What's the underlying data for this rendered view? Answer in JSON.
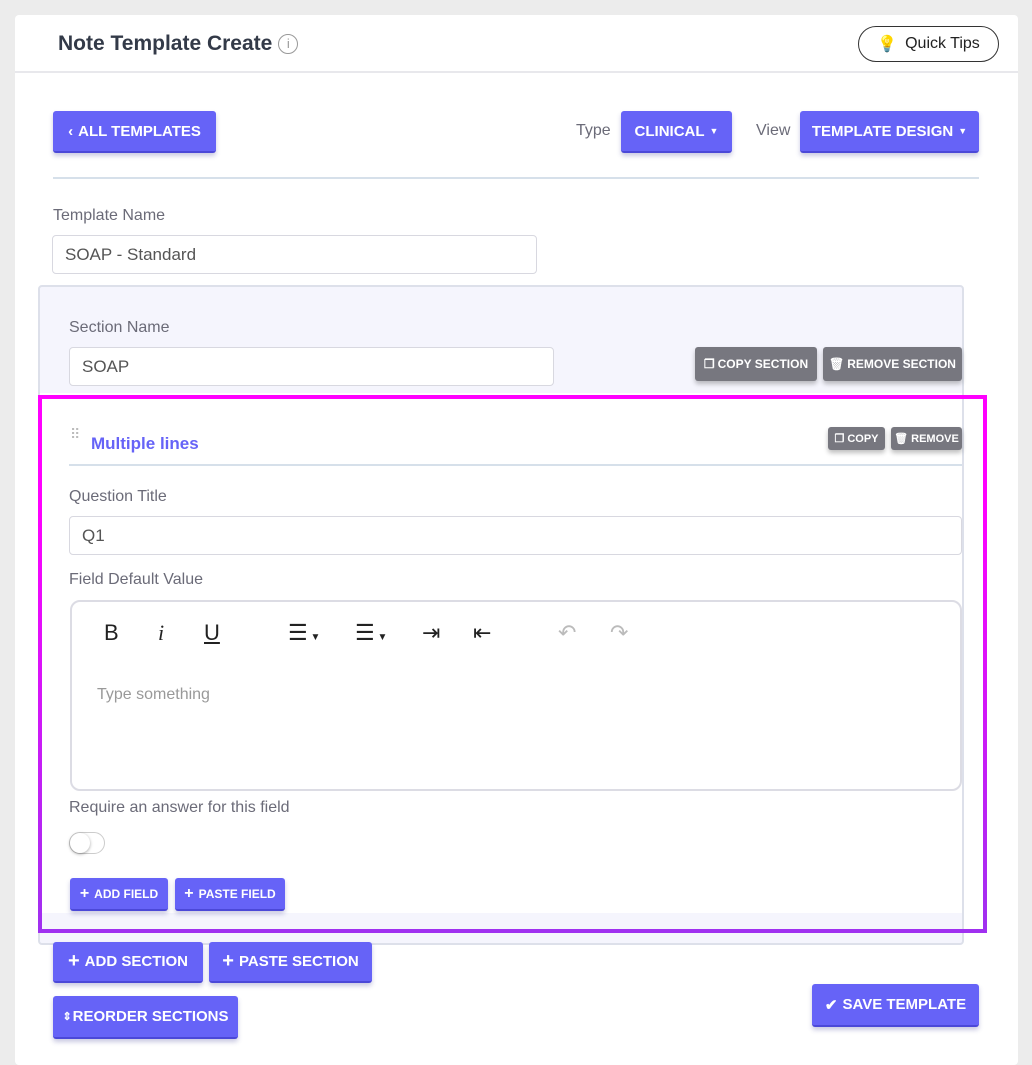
{
  "header": {
    "title": "Note Template Create",
    "quick_tips": "Quick Tips"
  },
  "toolbar": {
    "all_templates": "ALL TEMPLATES",
    "type_label": "Type",
    "type_value": "CLINICAL",
    "view_label": "View",
    "view_value": "TEMPLATE DESIGN"
  },
  "template": {
    "name_label": "Template Name",
    "name_value": "SOAP - Standard"
  },
  "section": {
    "name_label": "Section Name",
    "name_value": "SOAP",
    "copy": "COPY SECTION",
    "remove": "REMOVE SECTION"
  },
  "field": {
    "type_title": "Multiple lines",
    "copy": "COPY",
    "remove": "REMOVE",
    "question_label": "Question Title",
    "question_value": "Q1",
    "default_label": "Field Default Value",
    "placeholder": "Type something",
    "require_label": "Require an answer for this field",
    "require_on": false,
    "add_field": "ADD FIELD",
    "paste_field": "PASTE FIELD"
  },
  "footer": {
    "add_section": "ADD SECTION",
    "paste_section": "PASTE SECTION",
    "reorder": "REORDER SECTIONS",
    "save": "SAVE TEMPLATE"
  },
  "colors": {
    "accent": "#6663f7",
    "secondary": "#77777f",
    "highlight": "#ff00ff"
  }
}
